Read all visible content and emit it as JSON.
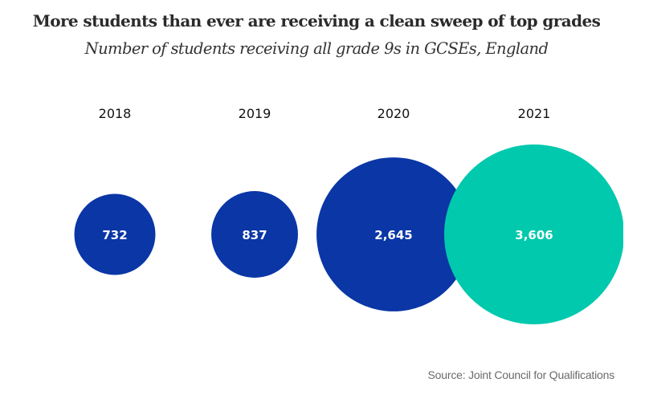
{
  "chart_data": {
    "type": "bubble",
    "title": "More students than ever are receiving a clean sweep of top grades",
    "subtitle": "Number of students receiving all grade 9s in GCSEs, England",
    "categories": [
      "2018",
      "2019",
      "2020",
      "2021"
    ],
    "values": [
      732,
      837,
      2645,
      3606
    ],
    "value_labels": [
      "732",
      "837",
      "2,645",
      "3,606"
    ],
    "colors": [
      "#0a36a6",
      "#0a36a6",
      "#0a36a6",
      "#00c9ad"
    ],
    "xlabel": "",
    "ylabel": "",
    "legend": "none",
    "grid": false,
    "source": "Source: Joint Council for Qualifications"
  }
}
